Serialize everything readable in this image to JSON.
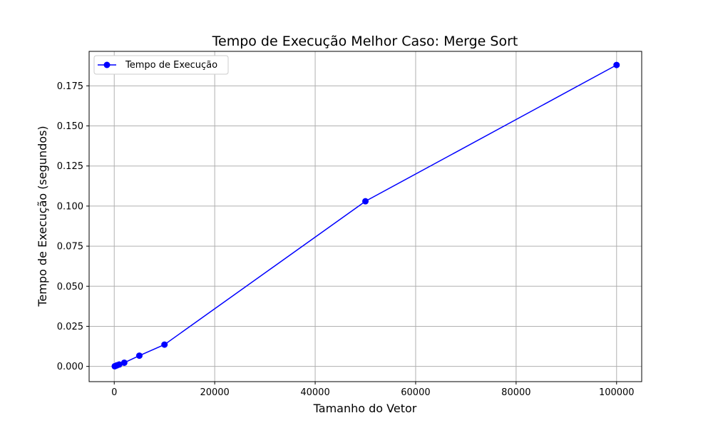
{
  "chart_data": {
    "type": "line",
    "title": "Tempo de Execução Melhor Caso: Merge Sort",
    "xlabel": "Tamanho do Vetor",
    "ylabel": "Tempo de Execução (segundos)",
    "xlim": [
      -5000,
      105000
    ],
    "ylim": [
      -0.0095,
      0.1965
    ],
    "x_ticks": [
      0,
      20000,
      40000,
      60000,
      80000,
      100000
    ],
    "x_tick_labels": [
      "0",
      "20000",
      "40000",
      "60000",
      "80000",
      "100000"
    ],
    "y_ticks": [
      0.0,
      0.025,
      0.05,
      0.075,
      0.1,
      0.125,
      0.15,
      0.175
    ],
    "y_tick_labels": [
      "0.000",
      "0.025",
      "0.050",
      "0.075",
      "0.100",
      "0.125",
      "0.150",
      "0.175"
    ],
    "grid": true,
    "legend_position": "top-left",
    "series": [
      {
        "name": "Tempo de Execução",
        "color": "#0000ff",
        "marker": "circle",
        "x": [
          100,
          500,
          1000,
          2000,
          5000,
          10000,
          50000,
          100000
        ],
        "y": [
          0.0001,
          0.0006,
          0.0012,
          0.0023,
          0.0067,
          0.0136,
          0.103,
          0.188
        ]
      }
    ]
  }
}
